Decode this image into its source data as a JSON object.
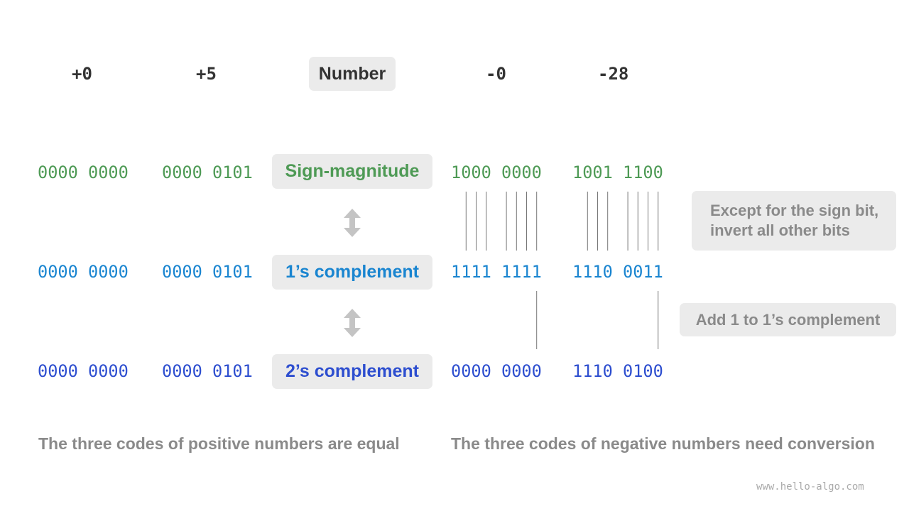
{
  "header": {
    "pos0": "+0",
    "pos5": "+5",
    "number_label": "Number",
    "neg0": "-0",
    "neg28": "-28"
  },
  "rows": [
    {
      "label": "Sign-magnitude",
      "color": "#4e9a55",
      "pos0": "0000 0000",
      "pos5": "0000 0101",
      "neg0": "1000 0000",
      "neg28": "1001 1100"
    },
    {
      "label": "1’s complement",
      "color": "#1a85d0",
      "pos0": "0000 0000",
      "pos5": "0000 0101",
      "neg0": "1111 1111",
      "neg28": "1110 0011"
    },
    {
      "label": "2’s complement",
      "color": "#2d4ecf",
      "pos0": "0000 0000",
      "pos5": "0000 0101",
      "neg0": "0000 0000",
      "neg28": "1110 0100"
    }
  ],
  "notes": {
    "invert": "Except for the sign bit,\ninvert all other bits",
    "add_one": "Add 1 to 1’s complement"
  },
  "footer": {
    "positive": "The three codes of positive numbers are equal",
    "negative": "The three codes of negative numbers need conversion"
  },
  "watermark": "www.hello-algo.com",
  "icons": {
    "arrow": "double-headed-vertical-arrow-icon"
  }
}
